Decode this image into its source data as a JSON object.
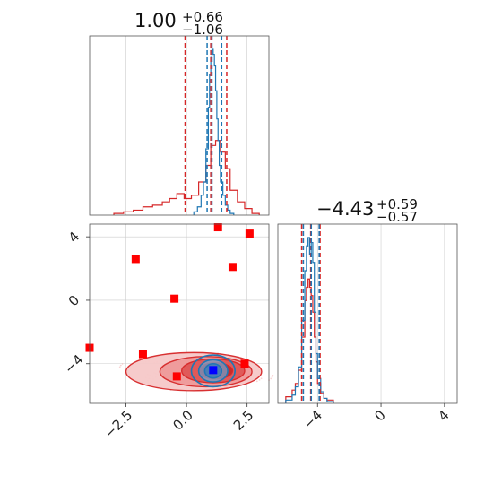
{
  "chart_data": {
    "type": "corner",
    "grid": true,
    "colors": {
      "blue": "#1f77b4",
      "red": "#d62728",
      "square_red": "#ff0000",
      "square_blue": "#0000ff"
    },
    "param1": {
      "title_value": "1.00",
      "title_plus": "+0.66",
      "title_minus": "−1.06",
      "range": [
        -4.0,
        3.4
      ],
      "ticks": [
        -2.5,
        0.0,
        2.5
      ],
      "tick_labels": [
        "−2.5",
        "0.0",
        "2.5"
      ],
      "quantiles_red": [
        -0.06,
        1.0,
        1.66
      ],
      "quantiles_blue": [
        0.85,
        1.05,
        1.45
      ],
      "hist_blue": {
        "bins": [
          0.3,
          0.45,
          0.6,
          0.7,
          0.8,
          0.9,
          0.95,
          1.0,
          1.05,
          1.1,
          1.15,
          1.2,
          1.25,
          1.3,
          1.35,
          1.4,
          1.5,
          1.6,
          1.7,
          1.8,
          1.95
        ],
        "heights": [
          0.02,
          0.05,
          0.12,
          0.2,
          0.4,
          0.65,
          0.85,
          0.95,
          1.0,
          0.97,
          0.9,
          0.75,
          0.58,
          0.45,
          0.3,
          0.2,
          0.12,
          0.06,
          0.03,
          0.01
        ]
      },
      "hist_red": {
        "bins": [
          -3.0,
          -2.6,
          -2.2,
          -1.8,
          -1.4,
          -1.0,
          -0.7,
          -0.4,
          -0.1,
          0.2,
          0.5,
          0.8,
          1.0,
          1.2,
          1.4,
          1.6,
          1.8,
          2.1,
          2.4,
          2.7,
          3.0
        ],
        "heights": [
          0.01,
          0.02,
          0.03,
          0.05,
          0.06,
          0.08,
          0.1,
          0.13,
          0.1,
          0.12,
          0.2,
          0.3,
          0.42,
          0.45,
          0.38,
          0.28,
          0.15,
          0.08,
          0.04,
          0.01
        ]
      }
    },
    "param2": {
      "title_value": "−4.43",
      "title_plus": "+0.59",
      "title_minus": "−0.57",
      "range": [
        -6.5,
        4.8
      ],
      "ticks": [
        -4,
        0,
        4
      ],
      "tick_labels": [
        "−4",
        "0",
        "4"
      ],
      "quantiles_red": [
        -5.0,
        -4.43,
        -3.84
      ],
      "quantiles_blue": [
        -4.95,
        -4.45,
        -3.95
      ],
      "hist_blue": {
        "bins": [
          -6.0,
          -5.6,
          -5.4,
          -5.2,
          -5.0,
          -4.8,
          -4.7,
          -4.6,
          -4.5,
          -4.4,
          -4.3,
          -4.2,
          -4.1,
          -4.0,
          -3.8,
          -3.6,
          -3.4,
          -3.0
        ],
        "heights": [
          0.02,
          0.05,
          0.1,
          0.22,
          0.5,
          0.8,
          0.95,
          1.0,
          0.9,
          0.97,
          0.85,
          0.55,
          0.3,
          0.15,
          0.07,
          0.03,
          0.01
        ]
      },
      "hist_red": {
        "bins": [
          -6.0,
          -5.6,
          -5.4,
          -5.2,
          -5.0,
          -4.8,
          -4.7,
          -4.6,
          -4.5,
          -4.4,
          -4.3,
          -4.2,
          -4.1,
          -4.0,
          -3.8,
          -3.6,
          -3.4,
          -3.0
        ],
        "heights": [
          0.04,
          0.08,
          0.12,
          0.2,
          0.4,
          0.62,
          0.7,
          0.75,
          0.7,
          0.65,
          0.55,
          0.4,
          0.25,
          0.12,
          0.06,
          0.03,
          0.02
        ]
      }
    },
    "scatter_points": [
      {
        "x": -4.0,
        "y": -3.0
      },
      {
        "x": -2.1,
        "y": 2.6
      },
      {
        "x": -1.8,
        "y": -3.4
      },
      {
        "x": -0.5,
        "y": 0.1
      },
      {
        "x": -0.4,
        "y": -4.8
      },
      {
        "x": 1.3,
        "y": 4.6
      },
      {
        "x": 1.9,
        "y": 2.1
      },
      {
        "x": 2.4,
        "y": -4.0
      },
      {
        "x": 2.6,
        "y": 4.2
      }
    ],
    "truth_point": {
      "x": 1.1,
      "y": -4.4
    },
    "contours_red": [
      {
        "cx": 0.3,
        "cy": -4.5,
        "rx": 2.8,
        "ry": 1.2
      },
      {
        "cx": 0.8,
        "cy": -4.5,
        "rx": 1.9,
        "ry": 0.95
      },
      {
        "cx": 1.1,
        "cy": -4.45,
        "rx": 1.3,
        "ry": 0.75
      },
      {
        "cx": 1.2,
        "cy": -4.45,
        "rx": 0.7,
        "ry": 0.5
      }
    ],
    "contours_blue": [
      {
        "cx": 1.1,
        "cy": -4.45,
        "rx": 0.9,
        "ry": 1.0
      },
      {
        "cx": 1.1,
        "cy": -4.45,
        "rx": 0.6,
        "ry": 0.7
      },
      {
        "cx": 1.1,
        "cy": -4.45,
        "rx": 0.35,
        "ry": 0.45
      }
    ]
  }
}
